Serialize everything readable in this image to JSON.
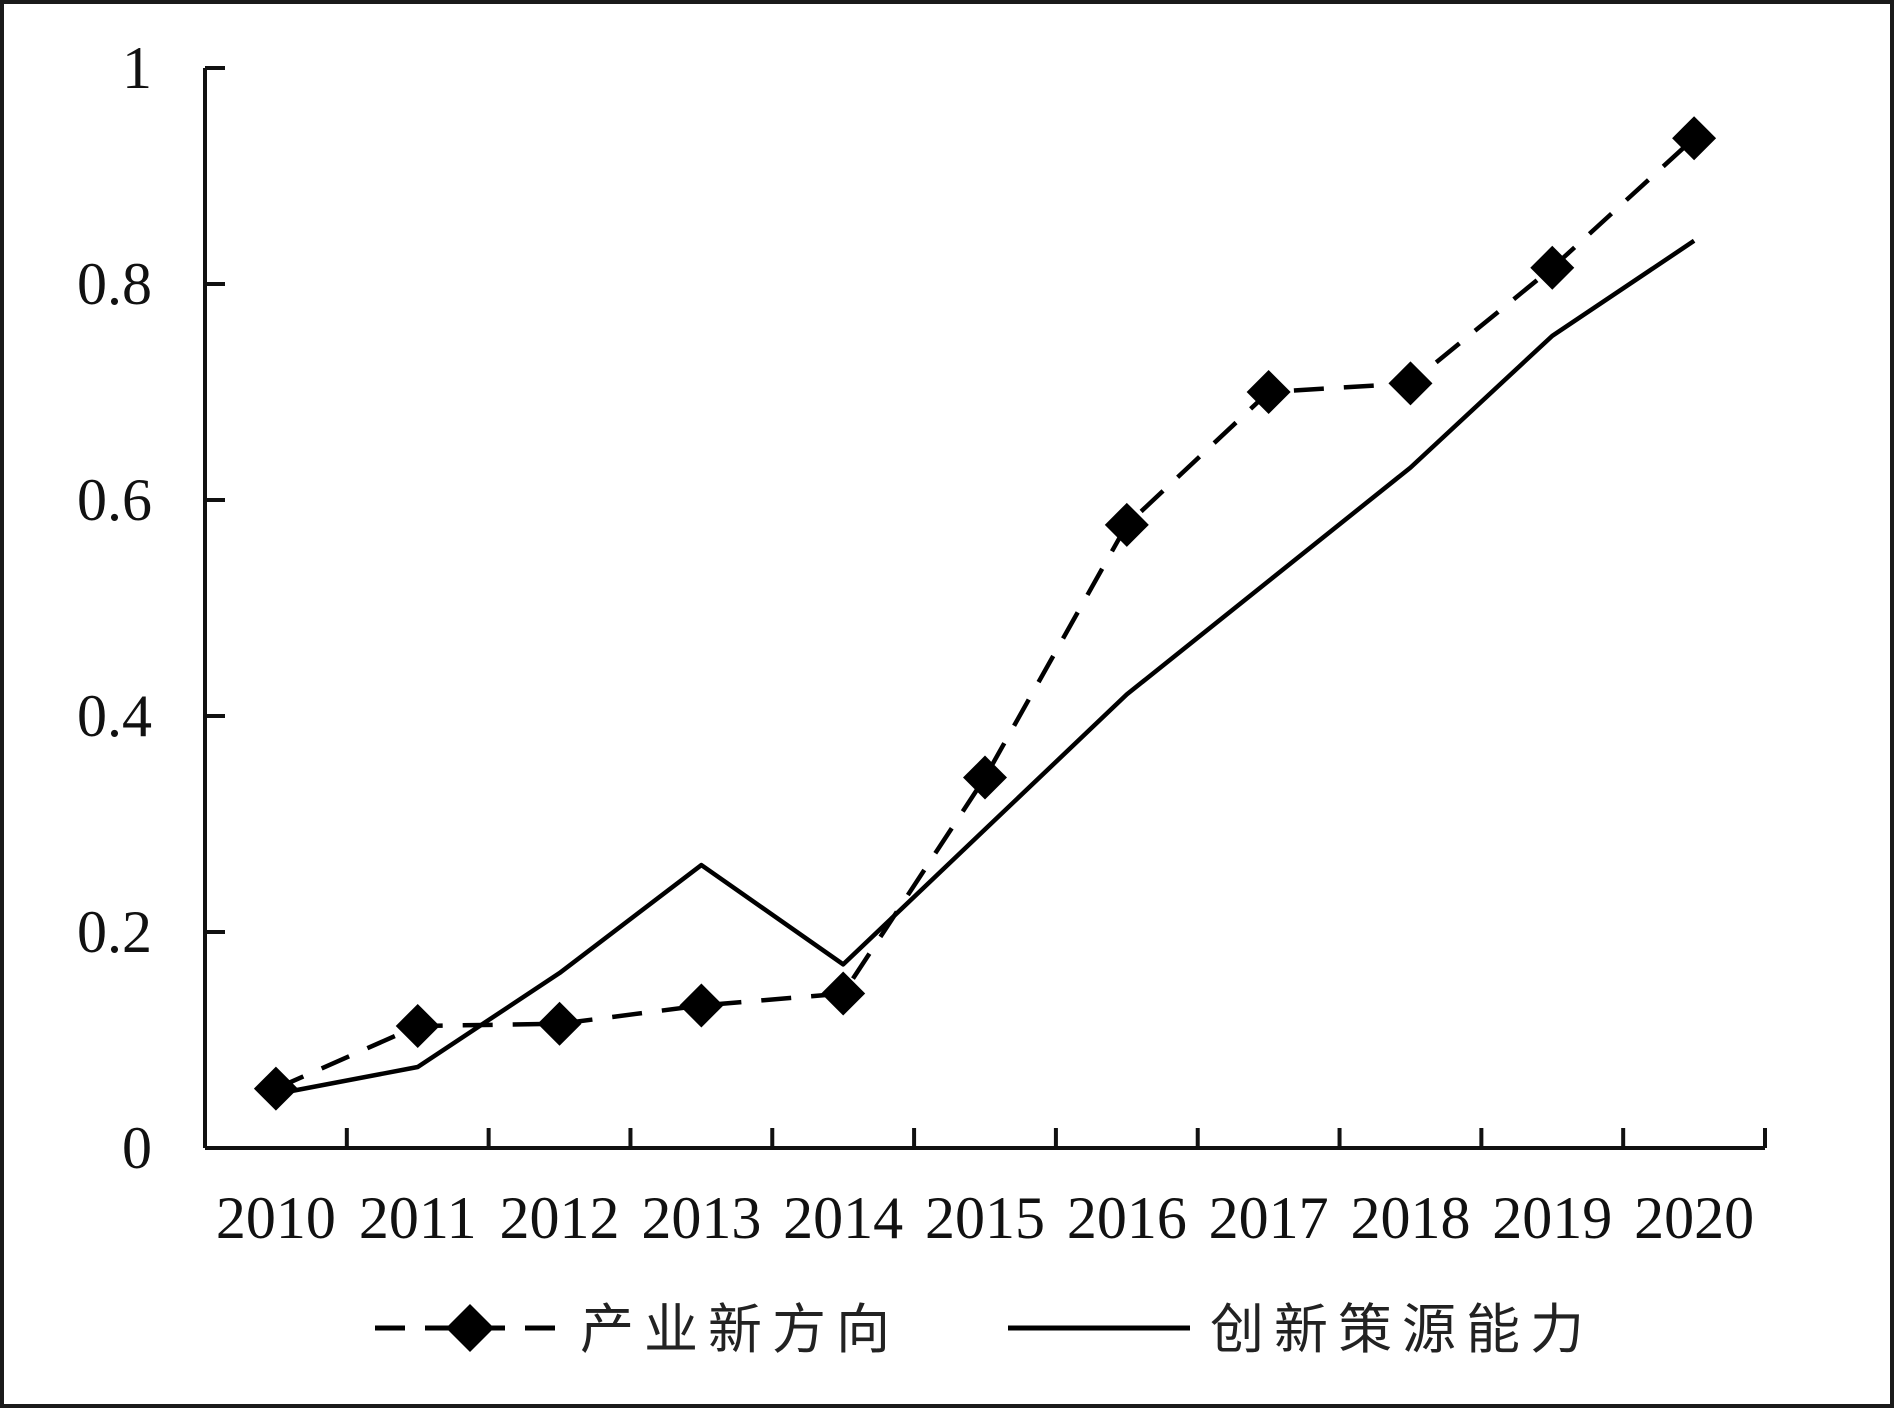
{
  "chart_data": {
    "type": "line",
    "title": "",
    "xlabel": "",
    "ylabel": "",
    "categories": [
      "2010",
      "2011",
      "2012",
      "2013",
      "2014",
      "2015",
      "2016",
      "2017",
      "2018",
      "2019",
      "2020"
    ],
    "ylim": [
      0,
      1
    ],
    "yticks": [
      "0",
      "0.2",
      "0.4",
      "0.6",
      "0.8",
      "1"
    ],
    "grid": false,
    "legend_position": "bottom",
    "series": [
      {
        "name": "产业新方向",
        "style": "dashed",
        "marker": "diamond",
        "color": "#000000",
        "values": [
          0.055,
          0.113,
          0.115,
          0.132,
          0.143,
          0.343,
          0.577,
          0.7,
          0.708,
          0.815,
          0.935
        ]
      },
      {
        "name": "创新策源能力",
        "style": "solid",
        "marker": "none",
        "color": "#000000",
        "values": [
          0.05,
          0.075,
          0.162,
          0.262,
          0.17,
          0.295,
          0.42,
          0.525,
          0.63,
          0.752,
          0.84
        ]
      }
    ]
  }
}
